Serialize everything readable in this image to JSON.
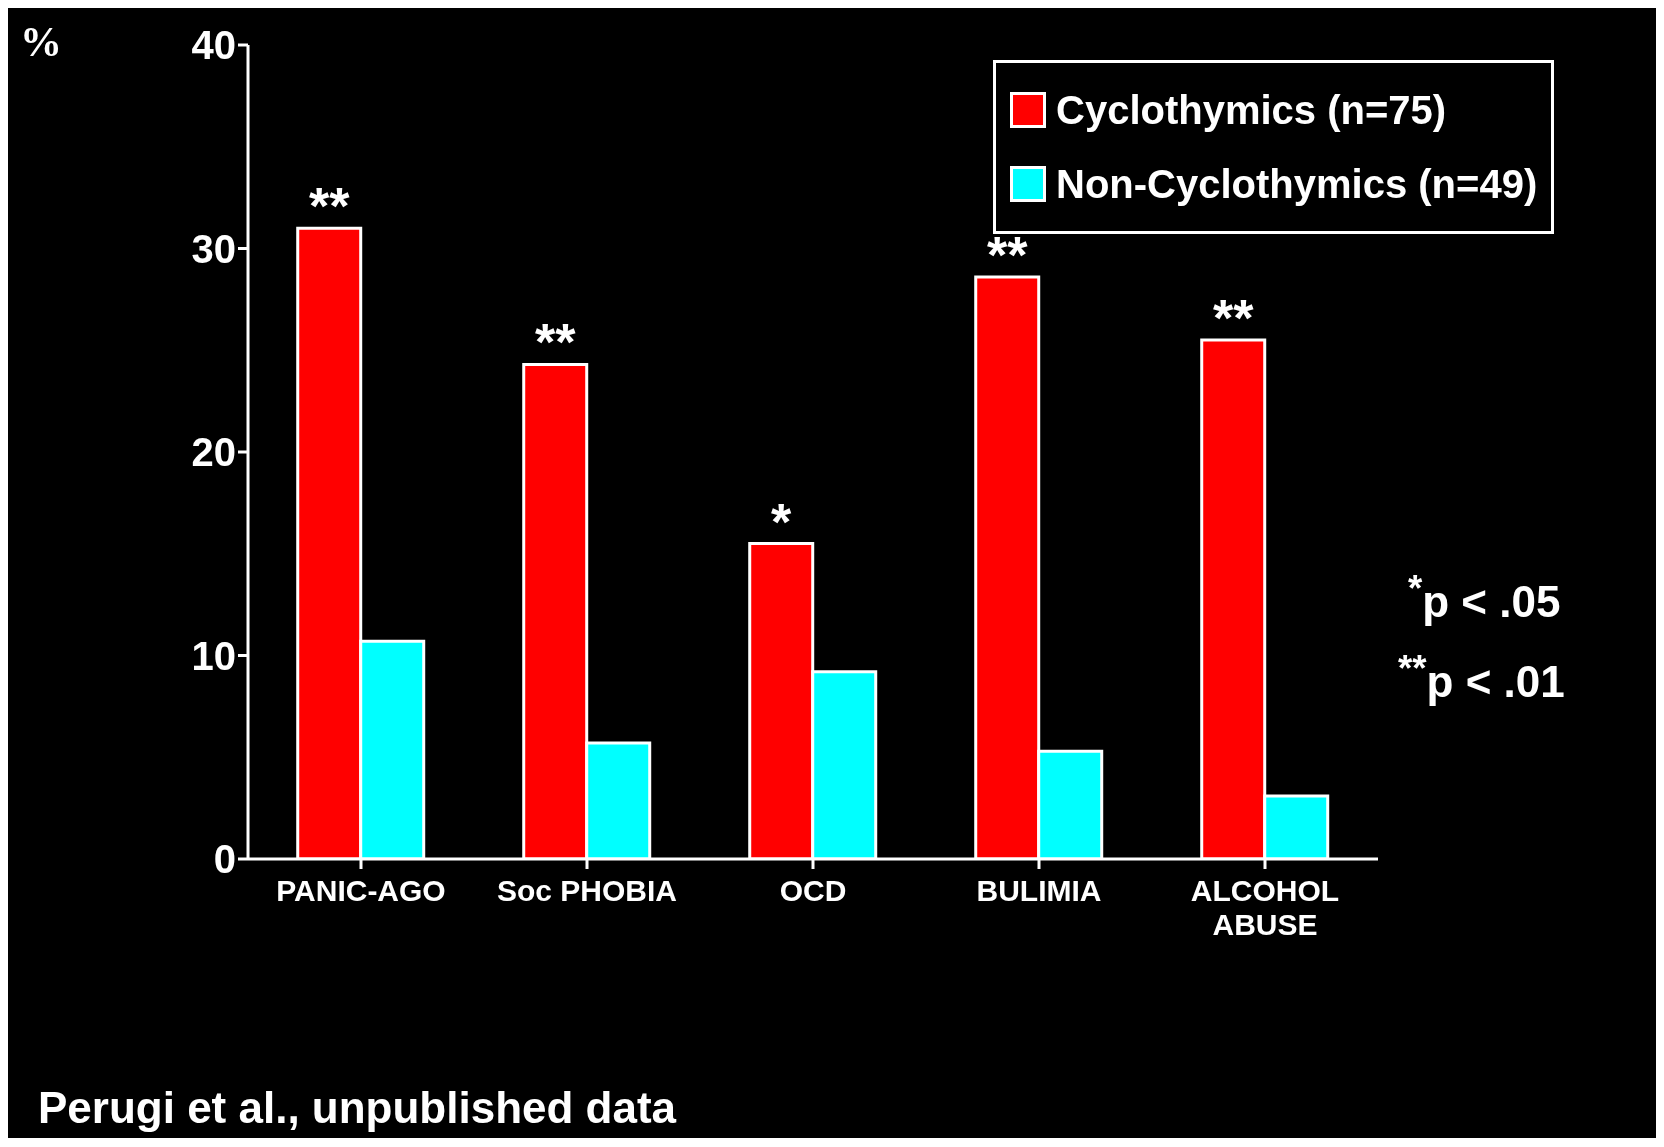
{
  "chart_data": {
    "type": "bar",
    "ylabel": "%",
    "categories": [
      "PANIC-AGO",
      "Soc PHOBIA",
      "OCD",
      "BULIMIA",
      "ALCOHOL ABUSE"
    ],
    "series": [
      {
        "name": "Cyclothymics (n=75)",
        "color": "#ff0000",
        "values": [
          31,
          24.3,
          15.5,
          28.6,
          25.5
        ],
        "value_labels": [
          "**",
          "**",
          "*",
          "**",
          "**"
        ]
      },
      {
        "name": "Non-Cyclothymics (n=49)",
        "color": "#00ffff",
        "values": [
          10.7,
          5.7,
          9.2,
          5.3,
          3.1
        ]
      }
    ],
    "ylim": [
      0,
      40
    ],
    "yticks": [
      0,
      10,
      20,
      30,
      40
    ],
    "grid": false,
    "legend": "top right",
    "annotations": [
      "$^{*}$p < .05",
      "$^{**}$p < .01",
      "Perugi et al., unpublished data"
    ]
  }
}
